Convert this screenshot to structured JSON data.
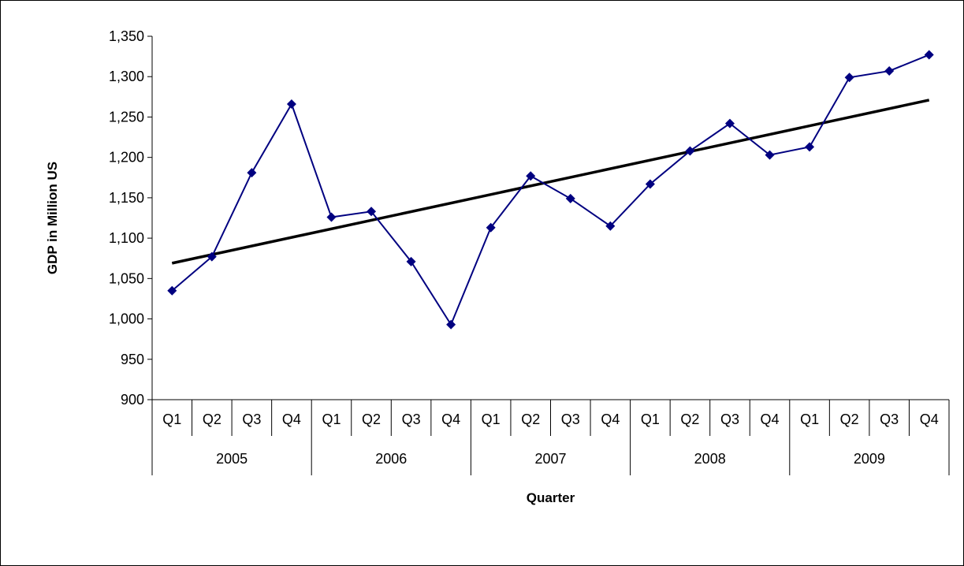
{
  "chart_data": {
    "type": "line",
    "title": "",
    "xlabel": "Quarter",
    "ylabel": "GDP in Million US",
    "ylim": [
      900,
      1350
    ],
    "ytick_step": 50,
    "ytick_labels": [
      "900",
      "950",
      "1,000",
      "1,050",
      "1,100",
      "1,150",
      "1,200",
      "1,250",
      "1,300",
      "1,350"
    ],
    "grid": false,
    "legend": "none",
    "quarters": [
      "Q1",
      "Q2",
      "Q3",
      "Q4"
    ],
    "years": [
      "2005",
      "2006",
      "2007",
      "2008",
      "2009"
    ],
    "categories": [
      "2005 Q1",
      "2005 Q2",
      "2005 Q3",
      "2005 Q4",
      "2006 Q1",
      "2006 Q2",
      "2006 Q3",
      "2006 Q4",
      "2007 Q1",
      "2007 Q2",
      "2007 Q3",
      "2007 Q4",
      "2008 Q1",
      "2008 Q2",
      "2008 Q3",
      "2008 Q4",
      "2009 Q1",
      "2009 Q2",
      "2009 Q3",
      "2009 Q4"
    ],
    "series": [
      {
        "values": [
          1035,
          1077,
          1181,
          1266,
          1126,
          1133,
          1071,
          993,
          1113,
          1177,
          1149,
          1115,
          1167,
          1208,
          1242,
          1203,
          1213,
          1299,
          1307,
          1327
        ],
        "color": "#000080",
        "marker": "diamond"
      }
    ],
    "trendline": {
      "type": "linear",
      "start": 1069,
      "end": 1271,
      "color": "#000000"
    }
  }
}
